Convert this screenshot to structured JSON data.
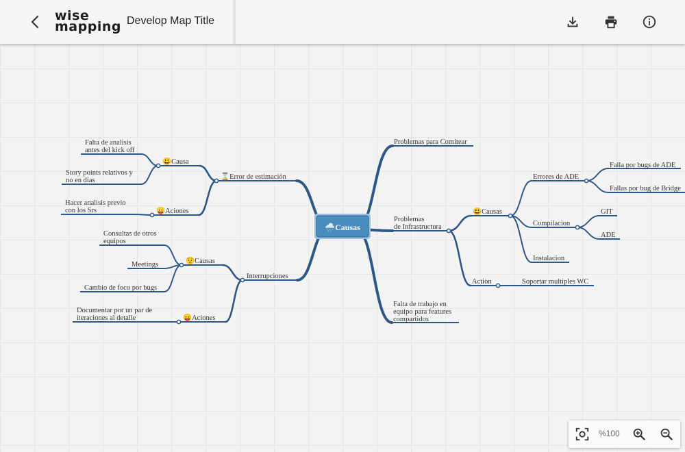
{
  "header": {
    "logo_line1": "wise",
    "logo_line2": "mapping",
    "title": "Develop Map Title"
  },
  "zoom": {
    "level": "%100"
  },
  "colors": {
    "branch": "#2e5785",
    "central_fill": "#4a8cbb",
    "central_border": "#9bc1df",
    "central_text": "#ffffff",
    "grid": "#e6e6e6"
  },
  "map": {
    "central": "🌧️Causas",
    "right": [
      {
        "text": "Problemas para Comitear"
      },
      {
        "text": "Problemas\nde Infrastructura",
        "children": [
          {
            "text": "😃Causas",
            "children": [
              {
                "text": "Errores de ADE",
                "children": [
                  {
                    "text": "Falla por bugs de ADE"
                  },
                  {
                    "text": "Fallas por bug de Bridge"
                  }
                ]
              },
              {
                "text": "Compilacion",
                "children": [
                  {
                    "text": "GIT"
                  },
                  {
                    "text": "ADE"
                  }
                ]
              },
              {
                "text": "Instalacion"
              }
            ]
          },
          {
            "text": "Action",
            "children": [
              {
                "text": "Soportar multiples WC"
              }
            ]
          }
        ]
      },
      {
        "text": "Falta de trabajo en\nequipo para features\ncompartidos"
      }
    ],
    "left": [
      {
        "text": "⌛Error de estimación",
        "children": [
          {
            "text": "😃Causa",
            "children": [
              {
                "text": "Falta de analisis\nantes del kick off"
              },
              {
                "text": "Story points relativos y\nno en dias"
              }
            ]
          },
          {
            "text": "😛Aciones",
            "children": [
              {
                "text": "Hacer analisis previo\ncon los Srs"
              }
            ]
          }
        ]
      },
      {
        "text": "Interrupciones",
        "children": [
          {
            "text": "😟Causas",
            "children": [
              {
                "text": "Consultas de otros\nequipos"
              },
              {
                "text": "Meetings"
              },
              {
                "text": "Cambio de foco por bugs"
              }
            ]
          },
          {
            "text": "😛Aciones",
            "children": [
              {
                "text": "Documentar por un par de\niteraciones al detalle"
              }
            ]
          }
        ]
      }
    ]
  }
}
